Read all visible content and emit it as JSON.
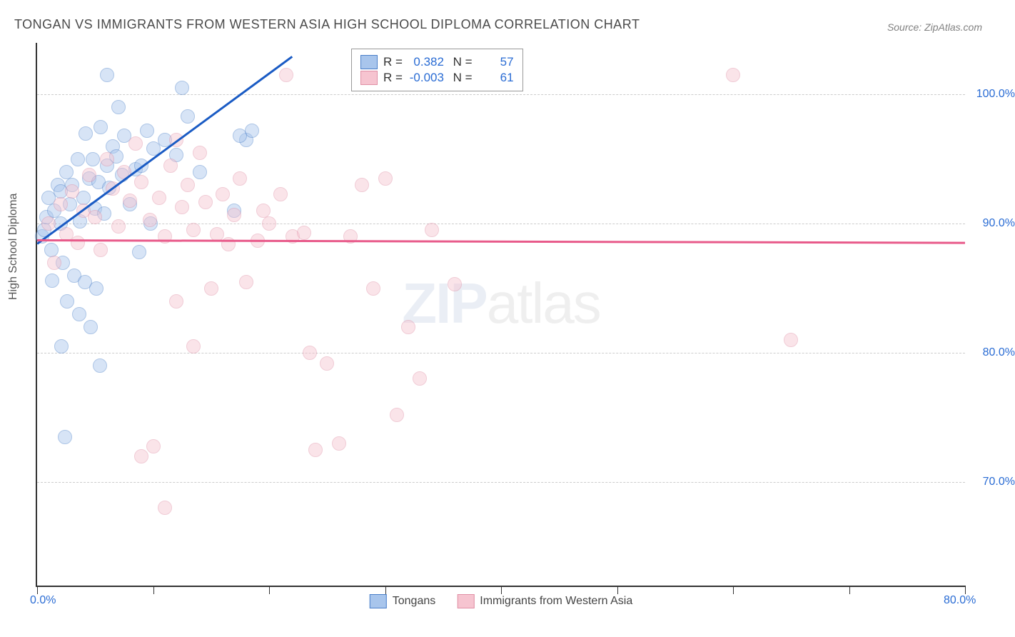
{
  "title": "TONGAN VS IMMIGRANTS FROM WESTERN ASIA HIGH SCHOOL DIPLOMA CORRELATION CHART",
  "source": "Source: ZipAtlas.com",
  "ylabel": "High School Diploma",
  "watermark_a": "ZIP",
  "watermark_b": "atlas",
  "chart": {
    "type": "scatter",
    "xlim": [
      0,
      80
    ],
    "ylim": [
      62,
      104
    ],
    "x_start_label": "0.0%",
    "x_end_label": "80.0%",
    "ytick_labels": [
      "70.0%",
      "80.0%",
      "90.0%",
      "100.0%"
    ],
    "ytick_values": [
      70,
      80,
      90,
      100
    ],
    "xtick_values": [
      0,
      10,
      20,
      30,
      40,
      50,
      60,
      70,
      80
    ],
    "background_color": "#ffffff",
    "grid_color": "#cccccc",
    "point_radius": 9,
    "point_opacity": 0.45,
    "series": [
      {
        "name": "Tongans",
        "color_fill": "#a8c5ec",
        "color_stroke": "#4a7fc9",
        "R": "0.382",
        "N": "57",
        "trend": {
          "x1": 0,
          "y1": 88.5,
          "x2": 22,
          "y2": 103,
          "color": "#1a5bc4"
        },
        "points": [
          [
            0.4,
            89
          ],
          [
            0.6,
            89.5
          ],
          [
            0.8,
            90.5
          ],
          [
            1,
            92
          ],
          [
            6,
            101.5
          ],
          [
            1.5,
            91
          ],
          [
            1.8,
            93
          ],
          [
            2,
            90
          ],
          [
            2,
            92.5
          ],
          [
            2.5,
            94
          ],
          [
            2.8,
            91.5
          ],
          [
            3,
            93
          ],
          [
            3.5,
            95
          ],
          [
            3.7,
            90.2
          ],
          [
            4,
            92
          ],
          [
            4.2,
            97
          ],
          [
            4.5,
            93.5
          ],
          [
            4.8,
            95
          ],
          [
            5,
            91.2
          ],
          [
            5.3,
            93.2
          ],
          [
            5.5,
            97.5
          ],
          [
            5.8,
            90.8
          ],
          [
            6,
            94.5
          ],
          [
            6.2,
            92.8
          ],
          [
            6.5,
            96
          ],
          [
            6.8,
            95.2
          ],
          [
            7,
            99
          ],
          [
            7.3,
            93.8
          ],
          [
            7.5,
            96.8
          ],
          [
            12.5,
            100.5
          ],
          [
            8,
            91.5
          ],
          [
            8.5,
            94.2
          ],
          [
            9,
            94.5
          ],
          [
            9.5,
            97.2
          ],
          [
            10,
            95.8
          ],
          [
            1.2,
            88
          ],
          [
            2.2,
            87
          ],
          [
            3.2,
            86
          ],
          [
            4.1,
            85.5
          ],
          [
            5.1,
            85
          ],
          [
            2.6,
            84
          ],
          [
            3.6,
            83
          ],
          [
            4.6,
            82
          ],
          [
            2.1,
            80.5
          ],
          [
            5.4,
            79
          ],
          [
            2.4,
            73.5
          ],
          [
            17,
            91
          ],
          [
            18,
            96.5
          ],
          [
            17.5,
            96.8
          ],
          [
            18.5,
            97.2
          ],
          [
            11,
            96.5
          ],
          [
            12,
            95.3
          ],
          [
            13,
            98.3
          ],
          [
            14,
            94
          ],
          [
            9.8,
            90
          ],
          [
            8.8,
            87.8
          ],
          [
            1.3,
            85.6
          ]
        ]
      },
      {
        "name": "Immigrants from Western Asia",
        "color_fill": "#f6c4d0",
        "color_stroke": "#e08fa5",
        "R": "-0.003",
        "N": "61",
        "trend": {
          "x1": 0,
          "y1": 88.8,
          "x2": 80,
          "y2": 88.6,
          "color": "#e85a8a"
        },
        "points": [
          [
            1,
            90
          ],
          [
            1.5,
            87
          ],
          [
            2,
            91.5
          ],
          [
            2.5,
            89.2
          ],
          [
            3,
            92.5
          ],
          [
            3.5,
            88.5
          ],
          [
            4,
            91
          ],
          [
            4.5,
            93.8
          ],
          [
            5,
            90.5
          ],
          [
            5.5,
            88
          ],
          [
            6,
            95
          ],
          [
            6.5,
            92.7
          ],
          [
            7,
            89.8
          ],
          [
            7.5,
            94
          ],
          [
            8,
            91.8
          ],
          [
            8.5,
            96.2
          ],
          [
            9,
            93.2
          ],
          [
            9.7,
            90.3
          ],
          [
            10.5,
            92
          ],
          [
            11,
            89
          ],
          [
            11.5,
            94.5
          ],
          [
            12,
            96.5
          ],
          [
            12.5,
            91.3
          ],
          [
            13,
            93
          ],
          [
            13.5,
            89.5
          ],
          [
            14,
            95.5
          ],
          [
            14.5,
            91.7
          ],
          [
            15,
            85
          ],
          [
            15.5,
            89.2
          ],
          [
            16,
            92.3
          ],
          [
            16.5,
            88.4
          ],
          [
            17,
            90.7
          ],
          [
            17.5,
            93.5
          ],
          [
            18,
            85.5
          ],
          [
            19,
            88.7
          ],
          [
            19.5,
            91
          ],
          [
            20,
            90
          ],
          [
            21,
            92.3
          ],
          [
            21.5,
            101.5
          ],
          [
            22,
            89
          ],
          [
            23,
            89.3
          ],
          [
            24,
            72.5
          ],
          [
            25,
            79.2
          ],
          [
            28,
            93
          ],
          [
            29,
            85
          ],
          [
            30,
            93.5
          ],
          [
            32,
            82
          ],
          [
            33,
            78
          ],
          [
            34,
            89.5
          ],
          [
            36,
            85.3
          ],
          [
            31,
            75.2
          ],
          [
            11,
            68
          ],
          [
            10,
            72.8
          ],
          [
            12,
            84
          ],
          [
            13.5,
            80.5
          ],
          [
            9,
            72
          ],
          [
            60,
            101.5
          ],
          [
            65,
            81
          ],
          [
            26,
            73
          ],
          [
            27,
            89
          ],
          [
            23.5,
            80
          ]
        ]
      }
    ]
  },
  "x_legend": [
    {
      "label": "Tongans",
      "fill": "#a8c5ec",
      "stroke": "#4a7fc9"
    },
    {
      "label": "Immigrants from Western Asia",
      "fill": "#f6c4d0",
      "stroke": "#e08fa5"
    }
  ]
}
